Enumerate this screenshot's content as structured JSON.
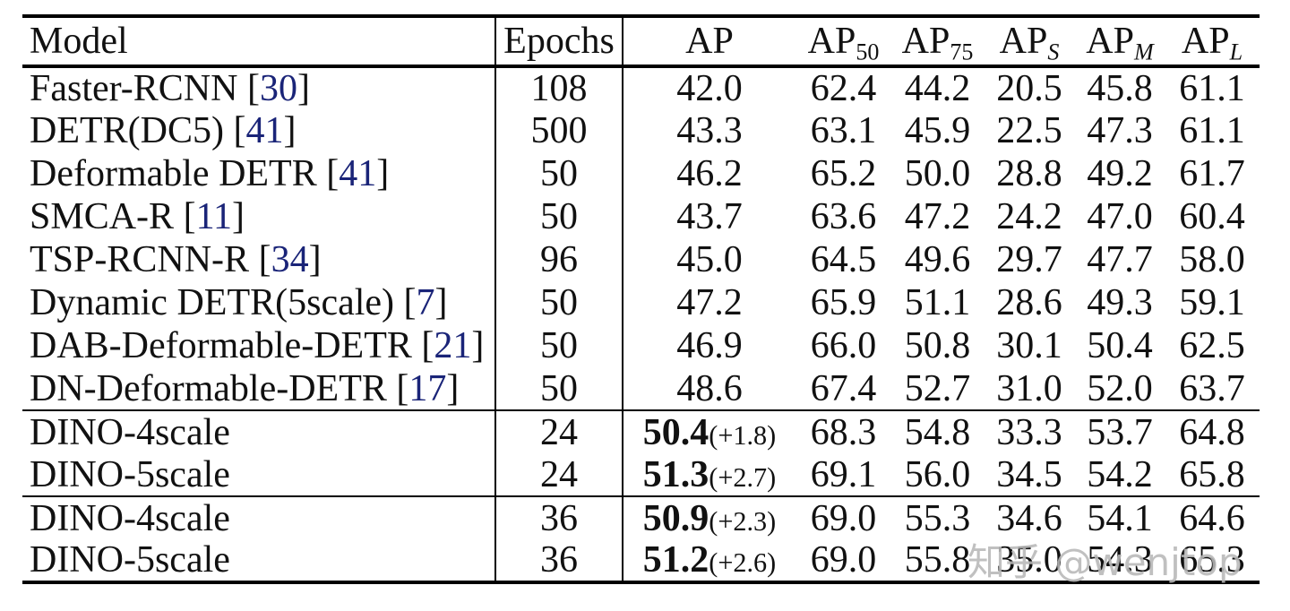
{
  "table": {
    "header": {
      "model": "Model",
      "epochs": "Epochs",
      "ap": "AP",
      "ap50": {
        "base": "AP",
        "sub": "50"
      },
      "ap75": {
        "base": "AP",
        "sub": "75"
      },
      "aps": {
        "base": "AP",
        "sub": "S"
      },
      "apm": {
        "base": "AP",
        "sub": "M"
      },
      "apl": {
        "base": "AP",
        "sub": "L"
      }
    },
    "rows": [
      {
        "model": "Faster-RCNN",
        "ref": "30",
        "epochs": "108",
        "ap": "42.0",
        "ap_bold": false,
        "ap_gain": null,
        "ap50": "62.4",
        "ap75": "44.2",
        "aps": "20.5",
        "apm": "45.8",
        "apl": "61.1",
        "section_end": false
      },
      {
        "model": "DETR(DC5)",
        "ref": "41",
        "epochs": "500",
        "ap": "43.3",
        "ap_bold": false,
        "ap_gain": null,
        "ap50": "63.1",
        "ap75": "45.9",
        "aps": "22.5",
        "apm": "47.3",
        "apl": "61.1",
        "section_end": false
      },
      {
        "model": "Deformable DETR",
        "ref": "41",
        "epochs": "50",
        "ap": "46.2",
        "ap_bold": false,
        "ap_gain": null,
        "ap50": "65.2",
        "ap75": "50.0",
        "aps": "28.8",
        "apm": "49.2",
        "apl": "61.7",
        "section_end": false
      },
      {
        "model": "SMCA-R",
        "ref": "11",
        "epochs": "50",
        "ap": "43.7",
        "ap_bold": false,
        "ap_gain": null,
        "ap50": "63.6",
        "ap75": "47.2",
        "aps": "24.2",
        "apm": "47.0",
        "apl": "60.4",
        "section_end": false
      },
      {
        "model": "TSP-RCNN-R",
        "ref": "34",
        "epochs": "96",
        "ap": "45.0",
        "ap_bold": false,
        "ap_gain": null,
        "ap50": "64.5",
        "ap75": "49.6",
        "aps": "29.7",
        "apm": "47.7",
        "apl": "58.0",
        "section_end": false
      },
      {
        "model": "Dynamic DETR(5scale)",
        "ref": "7",
        "epochs": "50",
        "ap": "47.2",
        "ap_bold": false,
        "ap_gain": null,
        "ap50": "65.9",
        "ap75": "51.1",
        "aps": "28.6",
        "apm": "49.3",
        "apl": "59.1",
        "section_end": false
      },
      {
        "model": "DAB-Deformable-DETR",
        "ref": "21",
        "epochs": "50",
        "ap": "46.9",
        "ap_bold": false,
        "ap_gain": null,
        "ap50": "66.0",
        "ap75": "50.8",
        "aps": "30.1",
        "apm": "50.4",
        "apl": "62.5",
        "section_end": false
      },
      {
        "model": "DN-Deformable-DETR",
        "ref": "17",
        "epochs": "50",
        "ap": "48.6",
        "ap_bold": false,
        "ap_gain": null,
        "ap50": "67.4",
        "ap75": "52.7",
        "aps": "31.0",
        "apm": "52.0",
        "apl": "63.7",
        "section_end": true
      },
      {
        "model": "DINO-4scale",
        "ref": null,
        "epochs": "24",
        "ap": "50.4",
        "ap_bold": true,
        "ap_gain": "(+1.8)",
        "ap50": "68.3",
        "ap75": "54.8",
        "aps": "33.3",
        "apm": "53.7",
        "apl": "64.8",
        "section_end": false
      },
      {
        "model": "DINO-5scale",
        "ref": null,
        "epochs": "24",
        "ap": "51.3",
        "ap_bold": true,
        "ap_gain": "(+2.7)",
        "ap50": "69.1",
        "ap75": "56.0",
        "aps": "34.5",
        "apm": "54.2",
        "apl": "65.8",
        "section_end": true
      },
      {
        "model": "DINO-4scale",
        "ref": null,
        "epochs": "36",
        "ap": "50.9",
        "ap_bold": true,
        "ap_gain": "(+2.3)",
        "ap50": "69.0",
        "ap75": "55.3",
        "aps": "34.6",
        "apm": "54.1",
        "apl": "64.6",
        "section_end": false
      },
      {
        "model": "DINO-5scale",
        "ref": null,
        "epochs": "36",
        "ap": "51.2",
        "ap_bold": true,
        "ap_gain": "(+2.6)",
        "ap50": "69.0",
        "ap75": "55.8",
        "aps": "35.0",
        "apm": "54.3",
        "apl": "65.3",
        "section_end": false
      }
    ]
  },
  "watermark": {
    "text": "知乎 @wenjtop"
  },
  "colors": {
    "text": "#111111",
    "citation_blue": "#1a2478",
    "watermark_gray": "#b8b8b8",
    "rule_black": "#000000"
  }
}
